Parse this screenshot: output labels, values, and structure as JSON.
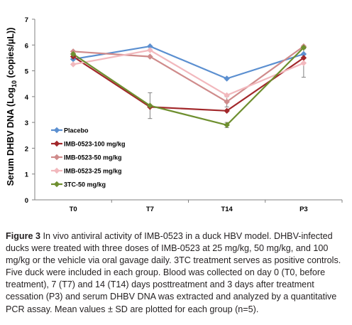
{
  "chart_data": {
    "type": "line",
    "ylabel_prefix": "Serum DHBV DNA (Log",
    "ylabel_sub": "10",
    "ylabel_suffix": " (copies/μL))",
    "xlabel": "",
    "ylim": [
      0,
      7
    ],
    "yticks": [
      "0",
      "1",
      "2",
      "3",
      "4",
      "5",
      "6",
      "7"
    ],
    "categories": [
      "T0",
      "T7",
      "T14",
      "P3"
    ],
    "legend_position": "bottom-left",
    "series": [
      {
        "name": "Placebo",
        "color": "#5b8fd0",
        "values": [
          5.45,
          5.95,
          4.7,
          5.65
        ],
        "sd": [
          0.0,
          0.0,
          0.0,
          0.0
        ]
      },
      {
        "name": "IMB-0523-100 mg/kg",
        "color": "#a2282b",
        "values": [
          5.55,
          3.6,
          3.45,
          5.5
        ],
        "sd": [
          0.0,
          0.0,
          0.0,
          0.0
        ]
      },
      {
        "name": "IMB-0523-50 mg/kg",
        "color": "#cf8b8b",
        "values": [
          5.75,
          5.55,
          3.8,
          5.95
        ],
        "sd": [
          0.0,
          0.0,
          0.2,
          0.0
        ]
      },
      {
        "name": "IMB-0523-25 mg/kg",
        "color": "#f2b8bd",
        "values": [
          5.25,
          5.8,
          4.05,
          5.3
        ],
        "sd": [
          0.0,
          0.0,
          0.0,
          0.55
        ]
      },
      {
        "name": "3TC-50 mg/kg",
        "color": "#6e8f2f",
        "values": [
          5.65,
          3.65,
          2.9,
          5.9
        ],
        "sd": [
          0.0,
          0.5,
          0.1,
          0.0
        ]
      }
    ]
  },
  "caption": {
    "label": "Figure 3",
    "text": " In vivo antiviral activity of IMB-0523 in a duck HBV model. DHBV-infected ducks were treated with three doses of IMB-0523 at 25 mg/kg, 50 mg/kg, and 100 mg/kg or the vehicle via oral gavage daily. 3TC treatment serves as positive controls. Five duck were included in each group. Blood was collected on day 0 (T0, before treatment), 7 (T7) and 14 (T14) days posttreatment and 3 days after treatment cessation (P3) and serum DHBV DNA was extracted and analyzed by a quantitative PCR assay. Mean values ± SD are plotted for each group (n=5)."
  }
}
